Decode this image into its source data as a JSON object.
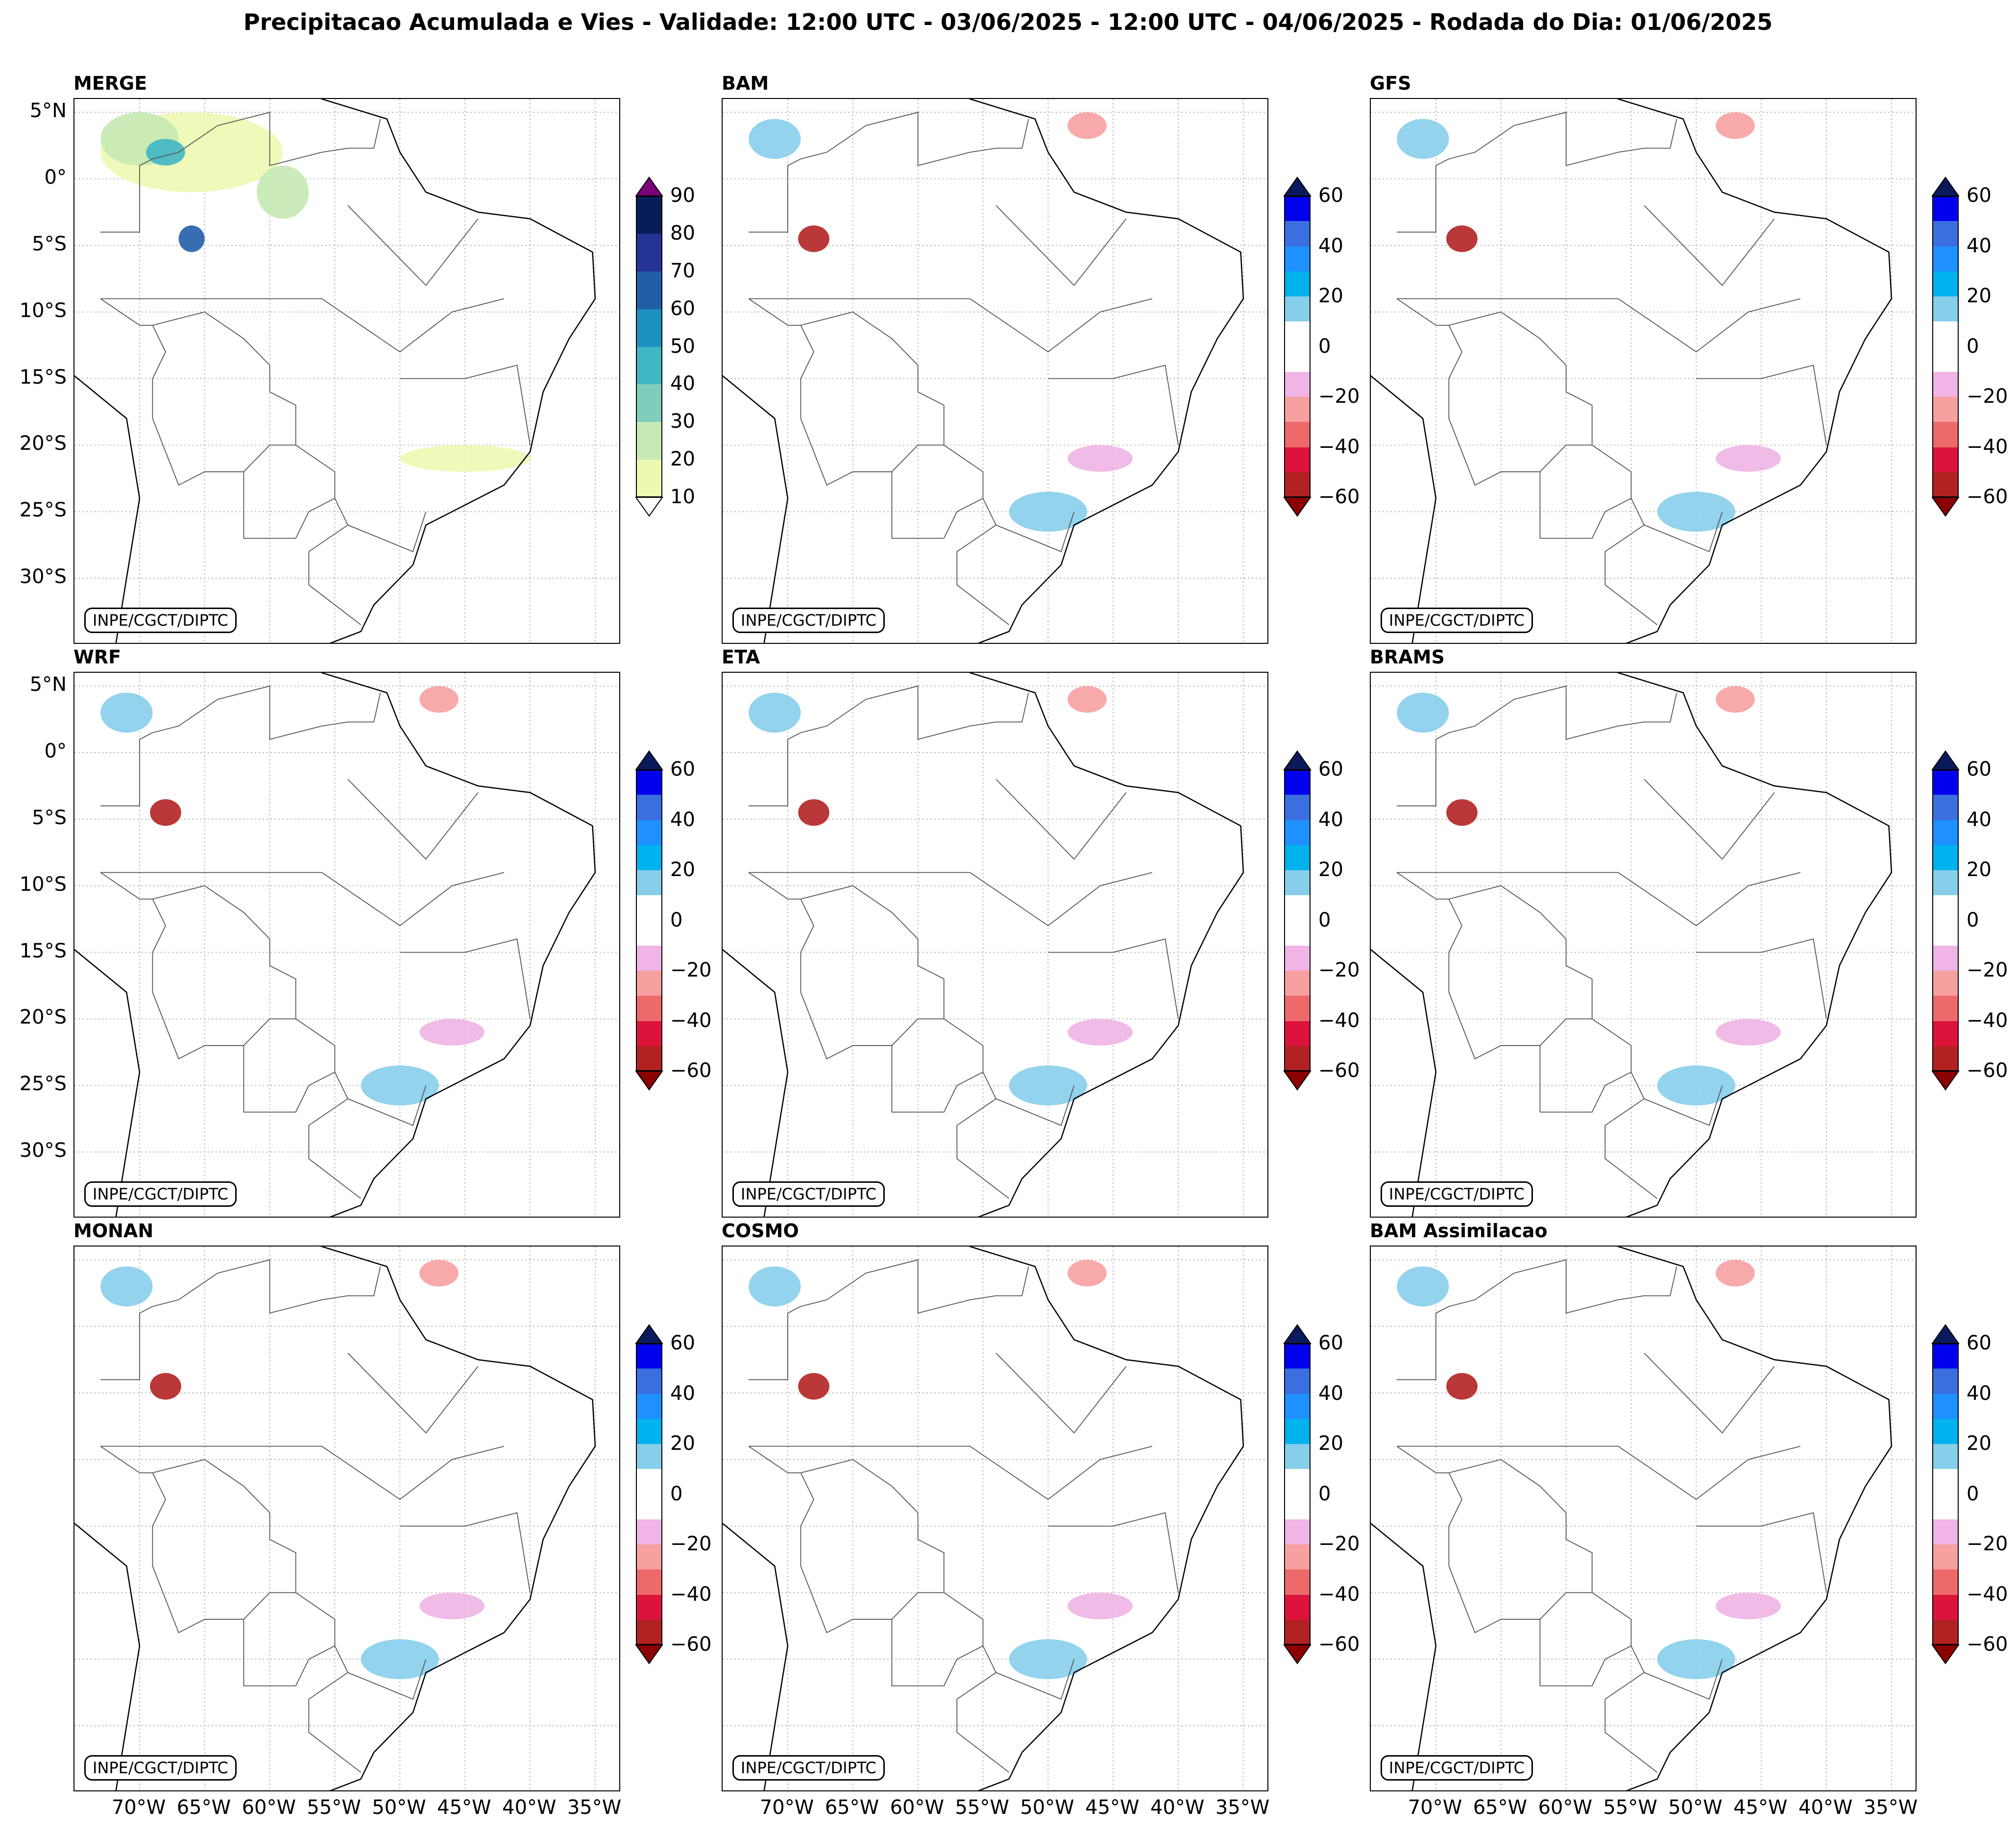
{
  "title": "Precipitacao Acumulada e Vies - Validade: 12:00 UTC - 03/06/2025 - 12:00 UTC - 04/06/2025 - Rodada do Dia: 01/06/2025",
  "credit": "INPE/CGCT/DIPTC",
  "lat_labels": [
    "5°N",
    "0°",
    "5°S",
    "10°S",
    "15°S",
    "20°S",
    "25°S",
    "30°S"
  ],
  "lon_labels": [
    "70°W",
    "65°W",
    "60°W",
    "55°W",
    "50°W",
    "45°W",
    "40°W",
    "35°W"
  ],
  "panels": [
    {
      "name": "MERGE",
      "colorbar": "precip"
    },
    {
      "name": "BAM",
      "colorbar": "bias"
    },
    {
      "name": "GFS",
      "colorbar": "bias"
    },
    {
      "name": "WRF",
      "colorbar": "bias"
    },
    {
      "name": "ETA",
      "colorbar": "bias"
    },
    {
      "name": "BRAMS",
      "colorbar": "bias"
    },
    {
      "name": "MONAN",
      "colorbar": "bias"
    },
    {
      "name": "COSMO",
      "colorbar": "bias"
    },
    {
      "name": "BAM Assimilacao",
      "colorbar": "bias"
    }
  ],
  "colorbars": {
    "precip": {
      "labels": [
        "90",
        "80",
        "70",
        "60",
        "50",
        "40",
        "30",
        "20",
        "10"
      ],
      "colors": [
        "#081d58",
        "#253494",
        "#225ea8",
        "#1d91c0",
        "#41b6c4",
        "#7fcdbb",
        "#c7e9b4",
        "#edf8b1"
      ],
      "extend_top": "#7a0177",
      "extend_bottom": "#ffffff"
    },
    "bias": {
      "labels": [
        "60",
        "40",
        "20",
        "0",
        "−20",
        "−40",
        "−60"
      ],
      "colors": [
        "#0000ee",
        "#3b6fe0",
        "#1e90ff",
        "#00b2ee",
        "#87ceeb",
        "#ffffff",
        "#ffffff",
        "#f0b4e6",
        "#f7a0a0",
        "#ee6a6a",
        "#dc143c",
        "#b22222"
      ],
      "extend_top": "#0b1a5c",
      "extend_bottom": "#8b0000"
    }
  },
  "precip_blobs": [
    {
      "lon": -66,
      "lat": 2,
      "rx": 7,
      "ry": 3,
      "color": "#edf8b1"
    },
    {
      "lon": -70,
      "lat": 3,
      "rx": 3,
      "ry": 2,
      "color": "#c7e9b4"
    },
    {
      "lon": -66,
      "lat": -4.5,
      "rx": 1,
      "ry": 1,
      "color": "#225ea8"
    },
    {
      "lon": -68,
      "lat": 2,
      "rx": 1.5,
      "ry": 1,
      "color": "#41b6c4"
    },
    {
      "lon": -59,
      "lat": -1,
      "rx": 2,
      "ry": 2,
      "color": "#c7e9b4"
    },
    {
      "lon": -45,
      "lat": -21,
      "rx": 5,
      "ry": 1,
      "color": "#edf8b1"
    }
  ],
  "bias_blobs": [
    {
      "lon": -68,
      "lat": -4.5,
      "rx": 1.2,
      "ry": 1,
      "color": "#b22222"
    },
    {
      "lon": -46,
      "lat": -21,
      "rx": 2.5,
      "ry": 1,
      "color": "#f0b4e6"
    },
    {
      "lon": -47,
      "lat": 4,
      "rx": 1.5,
      "ry": 1,
      "color": "#f7a0a0"
    },
    {
      "lon": -71,
      "lat": 3,
      "rx": 2,
      "ry": 1.5,
      "color": "#87ceeb"
    },
    {
      "lon": -50,
      "lat": -25,
      "rx": 3,
      "ry": 1.5,
      "color": "#87ceeb"
    }
  ]
}
